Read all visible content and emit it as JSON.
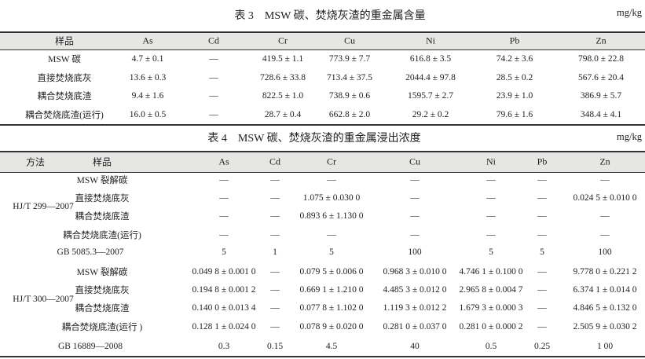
{
  "table3": {
    "title": "表 3　MSW 碳、焚烧灰渣的重金属含量",
    "unit": "mg/kg",
    "columns": [
      "样品",
      "As",
      "Cd",
      "Cr",
      "Cu",
      "Ni",
      "Pb",
      "Zn"
    ],
    "rows": [
      [
        "MSW 碳",
        "4.7 ± 0.1",
        "—",
        "419.5 ± 1.1",
        "773.9 ± 7.7",
        "616.8 ± 3.5",
        "74.2 ± 3.6",
        "798.0 ± 22.8"
      ],
      [
        "直接焚烧底灰",
        "13.6 ± 0.3",
        "—",
        "728.6 ± 33.8",
        "713.4 ± 37.5",
        "2044.4 ± 97.8",
        "28.5 ± 0.2",
        "567.6 ± 20.4"
      ],
      [
        "耦合焚烧底渣",
        "9.4 ± 1.6",
        "—",
        "822.5 ± 1.0",
        "738.9 ± 0.6",
        "1595.7 ± 2.7",
        "23.9 ± 1.0",
        "386.9 ± 5.7"
      ],
      [
        "耦合焚烧底渣(运行)",
        "16.0 ± 0.5",
        "—",
        "28.7 ± 0.4",
        "662.8 ± 2.0",
        "29.2 ± 0.2",
        "79.6 ± 1.6",
        "348.4 ± 4.1"
      ]
    ]
  },
  "table4": {
    "title": "表 4　MSW 碳、焚烧灰渣的重金属浸出浓度",
    "unit": "mg/kg",
    "columns": [
      "方法",
      "样品",
      "As",
      "Cd",
      "Cr",
      "Cu",
      "Ni",
      "Pb",
      "Zn"
    ],
    "groups": [
      {
        "method": "HJ/T 299—2007",
        "rows": [
          [
            "MSW 裂解碳",
            "—",
            "—",
            "—",
            "—",
            "—",
            "—",
            "—"
          ],
          [
            "直接焚烧底灰",
            "—",
            "—",
            "1.075 ± 0.030 0",
            "—",
            "—",
            "—",
            "0.024 5 ± 0.010 0"
          ],
          [
            "耦合焚烧底渣",
            "—",
            "—",
            "0.893 6 ± 1.130 0",
            "—",
            "—",
            "—",
            "—"
          ],
          [
            "耦合焚烧底渣(运行)",
            "—",
            "—",
            "—",
            "—",
            "—",
            "—",
            "—"
          ]
        ],
        "standard": [
          "GB 5085.3—2007",
          "5",
          "1",
          "5",
          "100",
          "5",
          "5",
          "100"
        ]
      },
      {
        "method": "HJ/T 300—2007",
        "rows": [
          [
            "MSW 裂解碳",
            "0.049 8 ± 0.001 0",
            "—",
            "0.079 5 ± 0.006 0",
            "0.968 3 ± 0.010 0",
            "4.746 1 ± 0.100 0",
            "—",
            "9.778 0 ± 0.221 2"
          ],
          [
            "直接焚烧底灰",
            "0.194 8 ± 0.001 2",
            "—",
            "0.669 1 ± 1.210 0",
            "4.485 3 ± 0.012 0",
            "2.965 8 ± 0.004 7",
            "—",
            "6.374 1 ± 0.014 0"
          ],
          [
            "耦合焚烧底渣",
            "0.140 0 ± 0.013 4",
            "—",
            "0.077 8 ± 1.102 0",
            "1.119 3 ± 0.012 2",
            "1.679 3 ± 0.000 3",
            "—",
            "4.846 5 ± 0.132 0"
          ],
          [
            "耦合焚烧底渣(运行 )",
            "0.128 1 ± 0.024 0",
            "—",
            "0.078 9 ± 0.020 0",
            "0.281 0 ± 0.037 0",
            "0.281 0 ± 0.000 2",
            "—",
            "2.505 9 ± 0.030 2"
          ]
        ],
        "standard": [
          "GB 16889—2008",
          "0.3",
          "0.15",
          "4.5",
          "40",
          "0.5",
          "0.25",
          "1 00"
        ]
      }
    ]
  }
}
